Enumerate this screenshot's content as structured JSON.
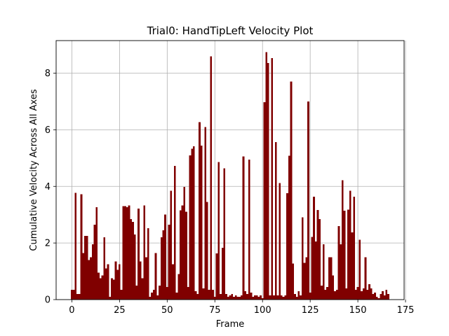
{
  "chart_data": {
    "type": "bar",
    "title": "Trial0: HandTipLeft Velocity Plot",
    "xlabel": "Frame",
    "ylabel": "Cumulative Velocity Across All Axes",
    "xlim": [
      -8.25,
      174.25
    ],
    "ylim": [
      0,
      9.15
    ],
    "xticks": [
      0,
      25,
      50,
      75,
      100,
      125,
      150,
      175
    ],
    "yticks": [
      0,
      2,
      4,
      6,
      8
    ],
    "grid": true,
    "bar_color": "#800000",
    "bar_width": 1,
    "x_start": 0,
    "values": [
      0.35,
      0.35,
      3.77,
      0.2,
      0.2,
      3.72,
      1.65,
      2.25,
      2.25,
      1.4,
      1.5,
      1.95,
      2.65,
      3.27,
      0.95,
      0.75,
      0.85,
      2.2,
      1.1,
      1.25,
      0.1,
      0.75,
      0.7,
      1.35,
      1.05,
      1.25,
      0.35,
      3.3,
      3.3,
      3.27,
      3.32,
      2.85,
      2.75,
      2.3,
      0.5,
      3.22,
      1.35,
      0.75,
      3.32,
      1.5,
      2.52,
      0.1,
      0.25,
      0.35,
      1.65,
      0.15,
      0.5,
      2.2,
      2.45,
      3.0,
      0.45,
      2.65,
      3.85,
      1.25,
      4.72,
      0.25,
      0.9,
      3.15,
      3.32,
      3.98,
      3.1,
      0.45,
      5.1,
      5.33,
      5.42,
      0.3,
      0.2,
      6.27,
      5.44,
      0.4,
      6.09,
      3.45,
      0.35,
      8.59,
      0.35,
      0.1,
      1.63,
      4.86,
      0.2,
      1.83,
      4.64,
      0.2,
      0.1,
      0.15,
      0.2,
      0.1,
      0.15,
      0.1,
      0.1,
      0.15,
      5.06,
      0.3,
      0.2,
      4.94,
      0.25,
      0.1,
      0.15,
      0.15,
      0.1,
      0.15,
      0.05,
      6.97,
      8.74,
      8.36,
      0.15,
      8.53,
      0.15,
      5.56,
      0.15,
      4.12,
      0.15,
      0.1,
      0.15,
      3.76,
      5.08,
      7.7,
      1.27,
      0.2,
      0.1,
      0.3,
      0.15,
      2.91,
      1.3,
      1.5,
      7.0,
      0.25,
      2.21,
      3.63,
      2.05,
      3.17,
      2.85,
      0.5,
      1.95,
      0.35,
      0.45,
      1.5,
      1.5,
      0.85,
      0.3,
      0.35,
      2.6,
      1.95,
      4.22,
      3.14,
      0.4,
      3.18,
      3.85,
      2.38,
      3.63,
      0.35,
      0.45,
      2.12,
      0.3,
      0.4,
      1.5,
      0.35,
      0.55,
      0.4,
      0.2,
      0.25,
      0.1,
      0.05,
      0.2,
      0.3,
      0.15,
      0.35,
      0.2
    ],
    "annotations": []
  }
}
